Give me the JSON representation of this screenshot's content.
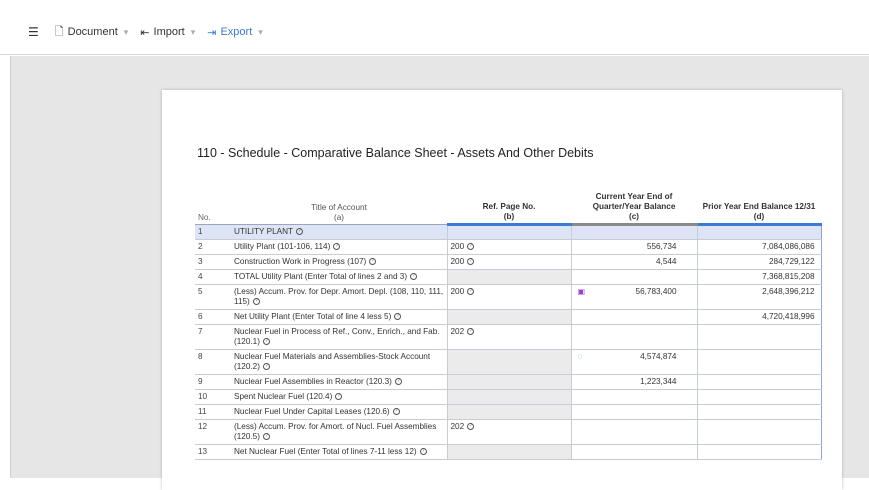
{
  "toolbar": {
    "document_label": "Document",
    "import_label": "Import",
    "export_label": "Export"
  },
  "report": {
    "title": "110 - Schedule - Comparative Balance Sheet - Assets And Other Debits"
  },
  "table": {
    "headers": {
      "no": "No.",
      "title": "Title of Account",
      "title_sub": "(a)",
      "ref": "Ref. Page No.",
      "ref_sub": "(b)",
      "cur_line1": "Current Year End of",
      "cur_line2": "Quarter/Year Balance",
      "cur_sub": "(c)",
      "prior": "Prior Year End Balance 12/31",
      "prior_sub": "(d)"
    },
    "rows": [
      {
        "no": "1",
        "account": "UTILITY PLANT",
        "ref": "",
        "current": "",
        "prior": ""
      },
      {
        "no": "2",
        "account": "Utility Plant (101-106, 114)",
        "ref": "200",
        "current": "556,734",
        "prior": "7,084,086,086"
      },
      {
        "no": "3",
        "account": "Construction Work in Progress (107)",
        "ref": "200",
        "current": "4,544",
        "prior": "284,729,122"
      },
      {
        "no": "4",
        "account": "TOTAL Utility Plant (Enter Total of lines 2 and 3)",
        "ref": "",
        "current": "",
        "prior": "7,368,815,208"
      },
      {
        "no": "5",
        "account": "(Less) Accum. Prov. for Depr. Amort. Depl. (108, 110, 111, 115)",
        "ref": "200",
        "current": "56,783,400",
        "prior": "2,648,396,212"
      },
      {
        "no": "6",
        "account": "Net Utility Plant (Enter Total of line 4 less 5)",
        "ref": "",
        "current": "",
        "prior": "4,720,418,996"
      },
      {
        "no": "7",
        "account": "Nuclear Fuel in Process of Ref., Conv., Enrich., and Fab. (120.1)",
        "ref": "202",
        "current": "",
        "prior": ""
      },
      {
        "no": "8",
        "account": "Nuclear Fuel Materials and Assemblies-Stock Account (120.2)",
        "ref": "",
        "current": "4,574,874",
        "prior": ""
      },
      {
        "no": "9",
        "account": "Nuclear Fuel Assemblies in Reactor (120.3)",
        "ref": "",
        "current": "1,223,344",
        "prior": ""
      },
      {
        "no": "10",
        "account": "Spent Nuclear Fuel (120.4)",
        "ref": "",
        "current": "",
        "prior": ""
      },
      {
        "no": "11",
        "account": "Nuclear Fuel Under Capital Leases (120.6)",
        "ref": "",
        "current": "",
        "prior": ""
      },
      {
        "no": "12",
        "account": "(Less) Accum. Prov. for Amort. of Nucl. Fuel Assemblies (120.5)",
        "ref": "202",
        "current": "",
        "prior": ""
      },
      {
        "no": "13",
        "account": "Net Nuclear Fuel (Enter Total of lines 7-11 less 12)",
        "ref": "",
        "current": "",
        "prior": ""
      }
    ]
  },
  "colors": {
    "accent": "#3a7bd5",
    "highlight_row": "#dce4f5",
    "doc_icon": "#9b3fd1",
    "comment_icon": "#2a8fd6"
  }
}
